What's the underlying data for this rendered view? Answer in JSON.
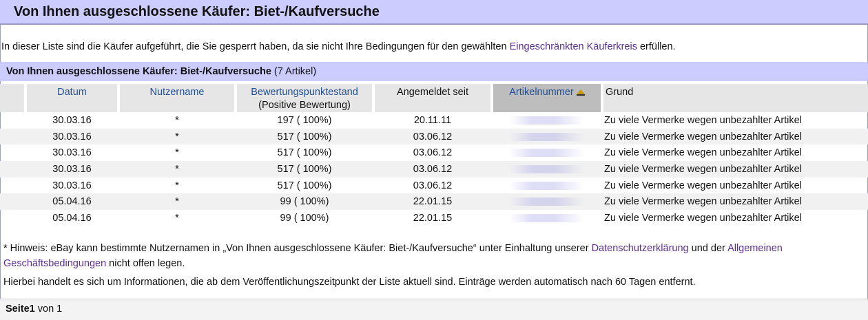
{
  "page": {
    "title": "Von Ihnen ausgeschlossene Käufer: Biet-/Kaufversuche"
  },
  "intro": {
    "text_before": "In dieser Liste sind die Käufer aufgeführt, die Sie gesperrt haben, da sie nicht Ihre Bedingungen für den gewählten ",
    "link": "Eingeschränkten Käuferkreis",
    "text_after": " erfüllen."
  },
  "section": {
    "title": "Von Ihnen ausgeschlossene Käufer: Biet-/Kaufversuche",
    "count": " (7 Artikel)"
  },
  "table": {
    "headers": {
      "datum": "Datum",
      "nutzername": "Nutzername",
      "bewertung": "Bewertungspunktestand",
      "bewertung_sub": "(Positive Bewertung)",
      "angemeldet": "Angemeldet seit",
      "artikelnummer": "Artikelnummer",
      "grund": "Grund"
    },
    "sort_icon": "sort-ascending-icon",
    "rows": [
      {
        "datum": "30.03.16",
        "nutzername": "*",
        "bewertung": "197 ( 100%)",
        "angemeldet": "20.11.11",
        "grund": "Zu viele Vermerke wegen unbezahlter Artikel"
      },
      {
        "datum": "30.03.16",
        "nutzername": "*",
        "bewertung": "517 ( 100%)",
        "angemeldet": "03.06.12",
        "grund": "Zu viele Vermerke wegen unbezahlter Artikel"
      },
      {
        "datum": "30.03.16",
        "nutzername": "*",
        "bewertung": "517 ( 100%)",
        "angemeldet": "03.06.12",
        "grund": "Zu viele Vermerke wegen unbezahlter Artikel"
      },
      {
        "datum": "30.03.16",
        "nutzername": "*",
        "bewertung": "517 ( 100%)",
        "angemeldet": "03.06.12",
        "grund": "Zu viele Vermerke wegen unbezahlter Artikel"
      },
      {
        "datum": "30.03.16",
        "nutzername": "*",
        "bewertung": "517 ( 100%)",
        "angemeldet": "03.06.12",
        "grund": "Zu viele Vermerke wegen unbezahlter Artikel"
      },
      {
        "datum": "05.04.16",
        "nutzername": "*",
        "bewertung": "99 ( 100%)",
        "angemeldet": "22.01.15",
        "grund": "Zu viele Vermerke wegen unbezahlter Artikel"
      },
      {
        "datum": "05.04.16",
        "nutzername": "*",
        "bewertung": "99 ( 100%)",
        "angemeldet": "22.01.15",
        "grund": "Zu viele Vermerke wegen unbezahlter Artikel"
      }
    ]
  },
  "hint": {
    "text1": "* Hinweis: eBay kann bestimmte Nutzernamen in „Von Ihnen ausgeschlossene Käufer: Biet-/Kaufversuche“ unter Einhaltung unserer ",
    "link1": "Datenschutzerklärung",
    "text2": " und der ",
    "link2": "Allgemeinen Geschäftsbedingungen",
    "text3": " nicht offen legen."
  },
  "footnote": "Hierbei handelt es sich um Informationen, die ab dem Veröffentlichungszeitpunkt der Liste aktuell sind. Einträge werden automatisch nach 60 Tagen entfernt.",
  "pager": {
    "label": "Seite1",
    "suffix": " von 1"
  },
  "colors": {
    "header_bg": "#ccccff",
    "link": "#5a2d91",
    "column_link": "#1f4f9a"
  }
}
